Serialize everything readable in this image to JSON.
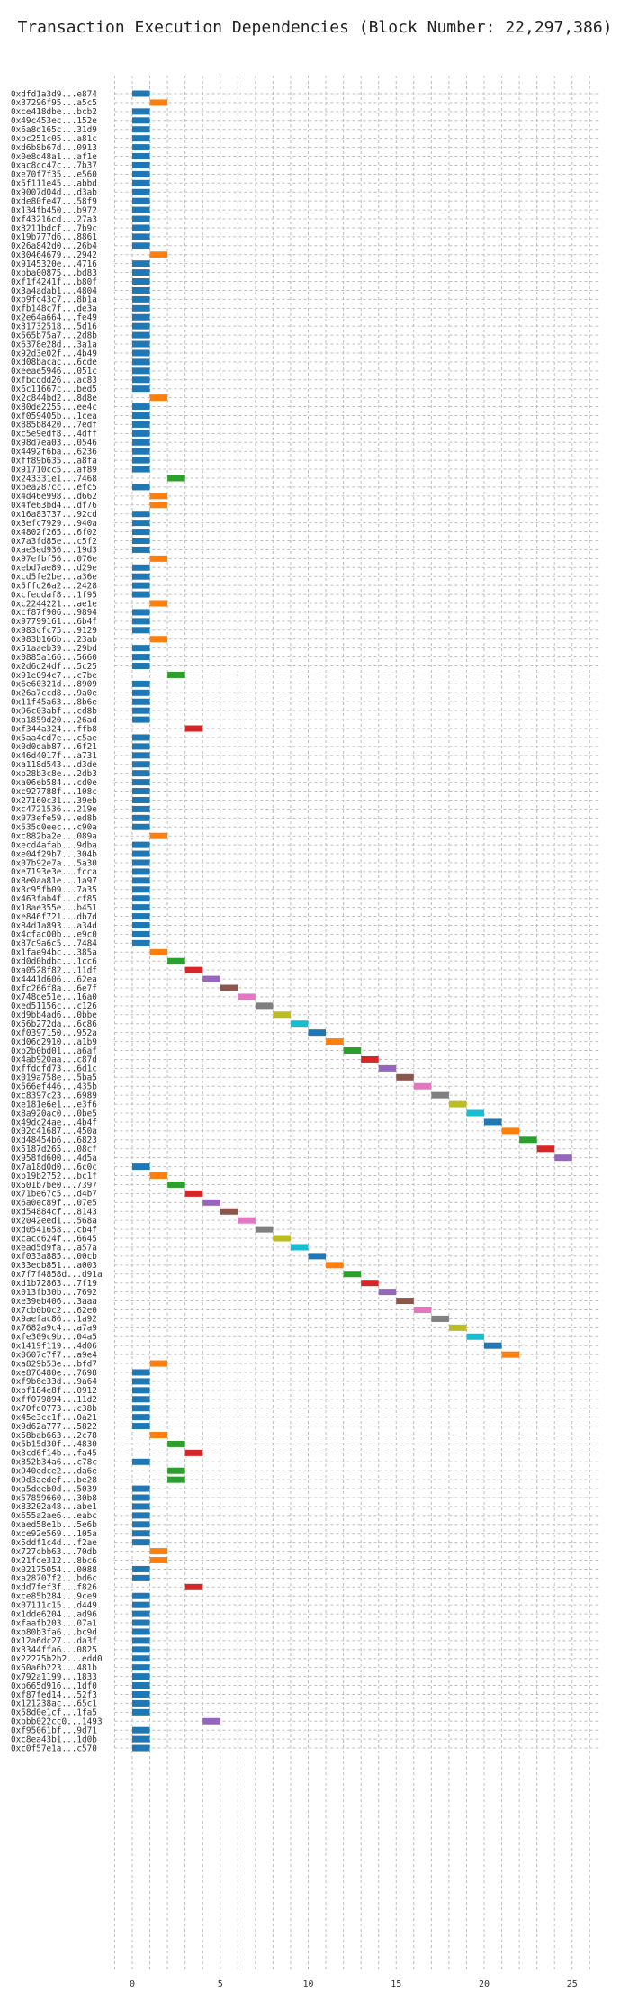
{
  "chart_data": {
    "type": "bar",
    "orientation": "horizontal",
    "title": "Transaction Execution Dependencies (Block Number: 22,297,386)",
    "xlabel": "",
    "ylabel": "",
    "xlim": [
      -1,
      26.5
    ],
    "xticks": [
      0,
      5,
      10,
      15,
      20,
      25
    ],
    "grid": true,
    "colors": [
      "#1f77b4",
      "#ff7f0e",
      "#2ca02c",
      "#d62728",
      "#9467bd",
      "#8c564b",
      "#e377c2",
      "#7f7f7f",
      "#bcbd22",
      "#17becf"
    ],
    "transactions": [
      {
        "label": "0xdfd1a3d9...e874",
        "start": 0,
        "end": 1
      },
      {
        "label": "0x37296f95...a5c5",
        "start": 1,
        "end": 2
      },
      {
        "label": "0xce418dbe...bcb2",
        "start": 0,
        "end": 1
      },
      {
        "label": "0x49c453ec...152e",
        "start": 0,
        "end": 1
      },
      {
        "label": "0x6a8d165c...31d9",
        "start": 0,
        "end": 1
      },
      {
        "label": "0xbc251c05...a81c",
        "start": 0,
        "end": 1
      },
      {
        "label": "0xd6b8b67d...0913",
        "start": 0,
        "end": 1
      },
      {
        "label": "0x0e8d48a1...af1e",
        "start": 0,
        "end": 1
      },
      {
        "label": "0xac8cc47c...7b37",
        "start": 0,
        "end": 1
      },
      {
        "label": "0xe70f7f35...e560",
        "start": 0,
        "end": 1
      },
      {
        "label": "0x5f111e45...abbd",
        "start": 0,
        "end": 1
      },
      {
        "label": "0x9007d04d...d3ab",
        "start": 0,
        "end": 1
      },
      {
        "label": "0xde80fe47...58f9",
        "start": 0,
        "end": 1
      },
      {
        "label": "0x134fb450...b972",
        "start": 0,
        "end": 1
      },
      {
        "label": "0xf43216cd...27a3",
        "start": 0,
        "end": 1
      },
      {
        "label": "0x3211bdcf...7b9c",
        "start": 0,
        "end": 1
      },
      {
        "label": "0x19b777d6...8861",
        "start": 0,
        "end": 1
      },
      {
        "label": "0x26a842d0...26b4",
        "start": 0,
        "end": 1
      },
      {
        "label": "0x30464679...2942",
        "start": 1,
        "end": 2
      },
      {
        "label": "0x9145320e...4716",
        "start": 0,
        "end": 1
      },
      {
        "label": "0xbba00875...bd83",
        "start": 0,
        "end": 1
      },
      {
        "label": "0xf1f4241f...b80f",
        "start": 0,
        "end": 1
      },
      {
        "label": "0x3a4adab1...4804",
        "start": 0,
        "end": 1
      },
      {
        "label": "0xb9fc43c7...8b1a",
        "start": 0,
        "end": 1
      },
      {
        "label": "0xfb148c7f...de3a",
        "start": 0,
        "end": 1
      },
      {
        "label": "0x2e64a664...fe49",
        "start": 0,
        "end": 1
      },
      {
        "label": "0x31732518...5d16",
        "start": 0,
        "end": 1
      },
      {
        "label": "0x565b75a7...2d8b",
        "start": 0,
        "end": 1
      },
      {
        "label": "0x6378e28d...3a1a",
        "start": 0,
        "end": 1
      },
      {
        "label": "0x92d3e02f...4b49",
        "start": 0,
        "end": 1
      },
      {
        "label": "0xd08bacac...6cde",
        "start": 0,
        "end": 1
      },
      {
        "label": "0xeeae5946...051c",
        "start": 0,
        "end": 1
      },
      {
        "label": "0xfbcddd26...ac83",
        "start": 0,
        "end": 1
      },
      {
        "label": "0x6c11667c...bed5",
        "start": 0,
        "end": 1
      },
      {
        "label": "0x2c844bd2...8d8e",
        "start": 1,
        "end": 2
      },
      {
        "label": "0x80de2255...ee4c",
        "start": 0,
        "end": 1
      },
      {
        "label": "0xf059405b...1cea",
        "start": 0,
        "end": 1
      },
      {
        "label": "0x885b8420...7edf",
        "start": 0,
        "end": 1
      },
      {
        "label": "0xc5e9edf8...4dff",
        "start": 0,
        "end": 1
      },
      {
        "label": "0x98d7ea03...0546",
        "start": 0,
        "end": 1
      },
      {
        "label": "0x4492f6ba...6236",
        "start": 0,
        "end": 1
      },
      {
        "label": "0xff89b635...a8fa",
        "start": 0,
        "end": 1
      },
      {
        "label": "0x91710cc5...af89",
        "start": 0,
        "end": 1
      },
      {
        "label": "0x243331e1...7468",
        "start": 2,
        "end": 3
      },
      {
        "label": "0xbea287cc...efc5",
        "start": 0,
        "end": 1
      },
      {
        "label": "0x4d46e998...d662",
        "start": 1,
        "end": 2
      },
      {
        "label": "0x4fe63bd4...df76",
        "start": 1,
        "end": 2
      },
      {
        "label": "0x16a83737...92cd",
        "start": 0,
        "end": 1
      },
      {
        "label": "0x3efc7929...940a",
        "start": 0,
        "end": 1
      },
      {
        "label": "0x4802f265...6f02",
        "start": 0,
        "end": 1
      },
      {
        "label": "0x7a3fd85e...c5f2",
        "start": 0,
        "end": 1
      },
      {
        "label": "0xae3ed936...19d3",
        "start": 0,
        "end": 1
      },
      {
        "label": "0x97efbf56...076e",
        "start": 1,
        "end": 2
      },
      {
        "label": "0xebd7ae89...d29e",
        "start": 0,
        "end": 1
      },
      {
        "label": "0xcd5fe2be...a36e",
        "start": 0,
        "end": 1
      },
      {
        "label": "0x5ffd26a2...2428",
        "start": 0,
        "end": 1
      },
      {
        "label": "0xcfeddaf8...1f95",
        "start": 0,
        "end": 1
      },
      {
        "label": "0xc2244221...ae1e",
        "start": 1,
        "end": 2
      },
      {
        "label": "0xcf87f906...9894",
        "start": 0,
        "end": 1
      },
      {
        "label": "0x97799161...6b4f",
        "start": 0,
        "end": 1
      },
      {
        "label": "0x983cfc75...9129",
        "start": 0,
        "end": 1
      },
      {
        "label": "0x983b166b...23ab",
        "start": 1,
        "end": 2
      },
      {
        "label": "0x51aaeb39...29bd",
        "start": 0,
        "end": 1
      },
      {
        "label": "0x0885a166...5660",
        "start": 0,
        "end": 1
      },
      {
        "label": "0x2d6d24df...5c25",
        "start": 0,
        "end": 1
      },
      {
        "label": "0x91e094c7...c7be",
        "start": 2,
        "end": 3
      },
      {
        "label": "0x6e60321d...8909",
        "start": 0,
        "end": 1
      },
      {
        "label": "0x26a7ccd8...9a0e",
        "start": 0,
        "end": 1
      },
      {
        "label": "0x11f45a63...8b6e",
        "start": 0,
        "end": 1
      },
      {
        "label": "0x96c03abf...cd8b",
        "start": 0,
        "end": 1
      },
      {
        "label": "0xa1859d20...26ad",
        "start": 0,
        "end": 1
      },
      {
        "label": "0xf344a324...ffb8",
        "start": 3,
        "end": 4
      },
      {
        "label": "0x5aa4cd7e...c5ae",
        "start": 0,
        "end": 1
      },
      {
        "label": "0x0d0dab87...6f21",
        "start": 0,
        "end": 1
      },
      {
        "label": "0x46d4017f...a731",
        "start": 0,
        "end": 1
      },
      {
        "label": "0xa118d543...d3de",
        "start": 0,
        "end": 1
      },
      {
        "label": "0xb28b3c8e...2db3",
        "start": 0,
        "end": 1
      },
      {
        "label": "0xa06eb584...cd0e",
        "start": 0,
        "end": 1
      },
      {
        "label": "0xc927788f...108c",
        "start": 0,
        "end": 1
      },
      {
        "label": "0x27160c31...39eb",
        "start": 0,
        "end": 1
      },
      {
        "label": "0xc4721536...219e",
        "start": 0,
        "end": 1
      },
      {
        "label": "0x073efe59...ed8b",
        "start": 0,
        "end": 1
      },
      {
        "label": "0x535d0eec...c90a",
        "start": 0,
        "end": 1
      },
      {
        "label": "0xc882ba2e...089a",
        "start": 1,
        "end": 2
      },
      {
        "label": "0xecd4afab...9dba",
        "start": 0,
        "end": 1
      },
      {
        "label": "0xe04f29b7...304b",
        "start": 0,
        "end": 1
      },
      {
        "label": "0x07b92e7a...5a30",
        "start": 0,
        "end": 1
      },
      {
        "label": "0xe7193e3e...fcca",
        "start": 0,
        "end": 1
      },
      {
        "label": "0x8e0aa81e...1a97",
        "start": 0,
        "end": 1
      },
      {
        "label": "0x3c95fb09...7a35",
        "start": 0,
        "end": 1
      },
      {
        "label": "0x463fab4f...cf85",
        "start": 0,
        "end": 1
      },
      {
        "label": "0x18ae355e...b451",
        "start": 0,
        "end": 1
      },
      {
        "label": "0xe846f721...db7d",
        "start": 0,
        "end": 1
      },
      {
        "label": "0x84d1a893...a34d",
        "start": 0,
        "end": 1
      },
      {
        "label": "0x4cfac00b...e9c0",
        "start": 0,
        "end": 1
      },
      {
        "label": "0x87c9a6c5...7484",
        "start": 0,
        "end": 1
      },
      {
        "label": "0x1fae94bc...385a",
        "start": 1,
        "end": 2
      },
      {
        "label": "0xd0d0bdbc...1cc6",
        "start": 2,
        "end": 3
      },
      {
        "label": "0xa0528f82...11df",
        "start": 3,
        "end": 4
      },
      {
        "label": "0x4441d606...62ea",
        "start": 4,
        "end": 5
      },
      {
        "label": "0xfc266f8a...6e7f",
        "start": 5,
        "end": 6
      },
      {
        "label": "0x748de51e...16a0",
        "start": 6,
        "end": 7
      },
      {
        "label": "0xed51156c...c126",
        "start": 7,
        "end": 8
      },
      {
        "label": "0xd9bb4ad6...0bbe",
        "start": 8,
        "end": 9
      },
      {
        "label": "0x56b272da...6c86",
        "start": 9,
        "end": 10
      },
      {
        "label": "0xf0397150...952a",
        "start": 10,
        "end": 11
      },
      {
        "label": "0xd06d2910...a1b9",
        "start": 11,
        "end": 12
      },
      {
        "label": "0xb2b0bd01...a6af",
        "start": 12,
        "end": 13
      },
      {
        "label": "0x4ab920aa...c87d",
        "start": 13,
        "end": 14
      },
      {
        "label": "0xffddfd73...6d1c",
        "start": 14,
        "end": 15
      },
      {
        "label": "0x019a758e...5ba5",
        "start": 15,
        "end": 16
      },
      {
        "label": "0x566ef446...435b",
        "start": 16,
        "end": 17
      },
      {
        "label": "0xc8397c23...6989",
        "start": 17,
        "end": 18
      },
      {
        "label": "0xe181e6e1...e3f6",
        "start": 18,
        "end": 19
      },
      {
        "label": "0x8a920ac0...0be5",
        "start": 19,
        "end": 20
      },
      {
        "label": "0x49dc24ae...4b4f",
        "start": 20,
        "end": 21
      },
      {
        "label": "0x02c41687...450a",
        "start": 21,
        "end": 22
      },
      {
        "label": "0xd48454b6...6823",
        "start": 22,
        "end": 23
      },
      {
        "label": "0x5187d265...08cf",
        "start": 23,
        "end": 24
      },
      {
        "label": "0x958fd600...4d5a",
        "start": 24,
        "end": 25
      },
      {
        "label": "0x7a18d0d0...6c0c",
        "start": 0,
        "end": 1
      },
      {
        "label": "0xb19b2752...bc1f",
        "start": 1,
        "end": 2
      },
      {
        "label": "0x501b7be0...7397",
        "start": 2,
        "end": 3
      },
      {
        "label": "0x71be67c5...d4b7",
        "start": 3,
        "end": 4
      },
      {
        "label": "0x6a0ec89f...07e5",
        "start": 4,
        "end": 5
      },
      {
        "label": "0xd54884cf...8143",
        "start": 5,
        "end": 6
      },
      {
        "label": "0x2042eed1...568a",
        "start": 6,
        "end": 7
      },
      {
        "label": "0xd0541658...cb4f",
        "start": 7,
        "end": 8
      },
      {
        "label": "0xcacc624f...6645",
        "start": 8,
        "end": 9
      },
      {
        "label": "0xead5d9fa...a57a",
        "start": 9,
        "end": 10
      },
      {
        "label": "0xf033a885...00cb",
        "start": 10,
        "end": 11
      },
      {
        "label": "0x33edb851...a003",
        "start": 11,
        "end": 12
      },
      {
        "label": "0x7f7f4858d...d91a",
        "start": 12,
        "end": 13
      },
      {
        "label": "0xd1b72863...7f19",
        "start": 13,
        "end": 14
      },
      {
        "label": "0x013fb30b...7692",
        "start": 14,
        "end": 15
      },
      {
        "label": "0xe39eb406...3aaa",
        "start": 15,
        "end": 16
      },
      {
        "label": "0x7cb0b0c2...62e0",
        "start": 16,
        "end": 17
      },
      {
        "label": "0x9aefac86...1a92",
        "start": 17,
        "end": 18
      },
      {
        "label": "0x7682a9c4...a7a9",
        "start": 18,
        "end": 19
      },
      {
        "label": "0xfe309c9b...04a5",
        "start": 19,
        "end": 20
      },
      {
        "label": "0x1419f119...4d06",
        "start": 20,
        "end": 21
      },
      {
        "label": "0x0607c7f7...a9e4",
        "start": 21,
        "end": 22
      },
      {
        "label": "0xa829b53e...bfd7",
        "start": 1,
        "end": 2
      },
      {
        "label": "0xe876480e...7698",
        "start": 0,
        "end": 1
      },
      {
        "label": "0xf9b6e33d...9a64",
        "start": 0,
        "end": 1
      },
      {
        "label": "0xbf184e8f...0912",
        "start": 0,
        "end": 1
      },
      {
        "label": "0xff079894...11d2",
        "start": 0,
        "end": 1
      },
      {
        "label": "0x70fd0773...c38b",
        "start": 0,
        "end": 1
      },
      {
        "label": "0x45e3cc1f...0a21",
        "start": 0,
        "end": 1
      },
      {
        "label": "0x9d62a777...5822",
        "start": 0,
        "end": 1
      },
      {
        "label": "0x58bab663...2c78",
        "start": 1,
        "end": 2
      },
      {
        "label": "0x5b15d30f...4830",
        "start": 2,
        "end": 3
      },
      {
        "label": "0x3cd6f14b...fa45",
        "start": 3,
        "end": 4
      },
      {
        "label": "0x352b34a6...c78c",
        "start": 0,
        "end": 1
      },
      {
        "label": "0x940edce2...da6e",
        "start": 2,
        "end": 3
      },
      {
        "label": "0x9d3aedef...be28",
        "start": 2,
        "end": 3
      },
      {
        "label": "0xa5deeb0d...5039",
        "start": 0,
        "end": 1
      },
      {
        "label": "0x57859660...30b8",
        "start": 0,
        "end": 1
      },
      {
        "label": "0x83202a48...abe1",
        "start": 0,
        "end": 1
      },
      {
        "label": "0x655a2ae6...eabc",
        "start": 0,
        "end": 1
      },
      {
        "label": "0xaed58e1b...5e6b",
        "start": 0,
        "end": 1
      },
      {
        "label": "0xce92e569...105a",
        "start": 0,
        "end": 1
      },
      {
        "label": "0x5ddf1c4d...f2ae",
        "start": 0,
        "end": 1
      },
      {
        "label": "0x727cbb63...70db",
        "start": 1,
        "end": 2
      },
      {
        "label": "0x21fde312...8bc6",
        "start": 1,
        "end": 2
      },
      {
        "label": "0x02175054...0088",
        "start": 0,
        "end": 1
      },
      {
        "label": "0xa28707f2...bd6c",
        "start": 0,
        "end": 1
      },
      {
        "label": "0xdd7fef3f...f826",
        "start": 3,
        "end": 4
      },
      {
        "label": "0xce85b284...9ce9",
        "start": 0,
        "end": 1
      },
      {
        "label": "0x07111c15...d449",
        "start": 0,
        "end": 1
      },
      {
        "label": "0x1dde6204...ad96",
        "start": 0,
        "end": 1
      },
      {
        "label": "0xfaafb203...07a1",
        "start": 0,
        "end": 1
      },
      {
        "label": "0xb80b3fa6...bc9d",
        "start": 0,
        "end": 1
      },
      {
        "label": "0x12a6dc27...da3f",
        "start": 0,
        "end": 1
      },
      {
        "label": "0x3344ffa6...0825",
        "start": 0,
        "end": 1
      },
      {
        "label": "0x22275b2b2...edd0",
        "start": 0,
        "end": 1
      },
      {
        "label": "0x50a6b223...481b",
        "start": 0,
        "end": 1
      },
      {
        "label": "0x792a1199...1833",
        "start": 0,
        "end": 1
      },
      {
        "label": "0xb665d916...1df0",
        "start": 0,
        "end": 1
      },
      {
        "label": "0xf87fed14...52f3",
        "start": 0,
        "end": 1
      },
      {
        "label": "0x121238ac...65c1",
        "start": 0,
        "end": 1
      },
      {
        "label": "0x58d0e1cf...1fa5",
        "start": 0,
        "end": 1
      },
      {
        "label": "0xbbb022cc0...1493",
        "start": 4,
        "end": 5
      },
      {
        "label": "0xf95061bf...9d71",
        "start": 0,
        "end": 1
      },
      {
        "label": "0xc8ea43b1...1d0b",
        "start": 0,
        "end": 1
      },
      {
        "label": "0xc0f57e1a...c570",
        "start": 0,
        "end": 1
      }
    ]
  }
}
